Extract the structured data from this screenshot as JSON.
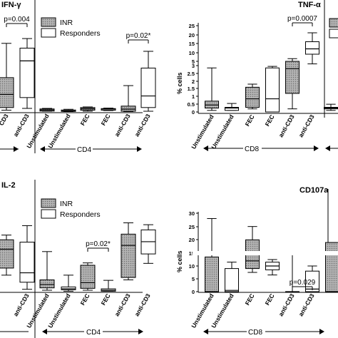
{
  "legend": {
    "inr": "INR",
    "responders": "Responders"
  },
  "chart_data": [
    {
      "type": "box",
      "panel": "ifn",
      "title": "IFN-γ",
      "ylim": [
        0,
        13
      ],
      "groups": [
        {
          "label": "CD3",
          "box": "r",
          "stats": [
            0.5,
            1.3,
            3.4,
            5.5,
            9.8
          ]
        },
        {
          "label": "anti-CD3",
          "box": "w",
          "stats": [
            1.0,
            3.0,
            7.6,
            9.2,
            10.4
          ]
        },
        {
          "label": "Unstimulated",
          "box": "g",
          "stats": [
            0.2,
            0.25,
            0.55,
            0.85,
            1.0
          ]
        },
        {
          "label": "Unstimulated",
          "box": "w",
          "stats": [
            0.1,
            0.15,
            0.3,
            0.55,
            0.75
          ]
        },
        {
          "label": "FEC",
          "box": "g",
          "stats": [
            0.2,
            0.5,
            0.9,
            1.3,
            1.5
          ]
        },
        {
          "label": "FEC",
          "box": "w",
          "stats": [
            0.4,
            0.5,
            0.8,
            0.95,
            1.1
          ]
        },
        {
          "label": "anti-CD3",
          "box": "g",
          "stats": [
            0.1,
            0.2,
            0.8,
            1.8,
            4.5
          ]
        },
        {
          "label": "anti-CD3",
          "box": "w",
          "stats": [
            0.2,
            1.3,
            3.2,
            6.7,
            8.8
          ]
        }
      ],
      "annotations": [
        {
          "text": "p=0.004",
          "from": 0,
          "to": 1
        },
        {
          "text": "p=0.02*",
          "from": 6,
          "to": 7
        }
      ],
      "group_axis": "CD4"
    },
    {
      "type": "box",
      "panel": "tnf",
      "title": "TNF-α",
      "ylabel": "% cells",
      "ylim": [
        0,
        25
      ],
      "yticks": [
        "0",
        "0.5",
        "1",
        "1.5",
        "2",
        "2.5",
        "3",
        "5",
        "10",
        "15",
        "20",
        "25"
      ],
      "groups": [
        {
          "label": "Unstimulated",
          "box": "g",
          "stats": [
            0.1,
            0.25,
            0.45,
            0.7,
            2.85
          ]
        },
        {
          "label": "Unstimulated",
          "box": "w",
          "stats": [
            0.1,
            0.1,
            0.25,
            0.3,
            0.55
          ]
        },
        {
          "label": "FEC",
          "box": "g",
          "stats": [
            0.2,
            0.3,
            0.85,
            1.6,
            1.8
          ]
        },
        {
          "label": "FEC",
          "box": "w",
          "stats": [
            0.0,
            0.0,
            0.85,
            2.85,
            2.95
          ]
        },
        {
          "label": "anti-CD3",
          "box": "g",
          "stats": [
            0.2,
            1.2,
            2.8,
            5.0,
            6.5
          ]
        },
        {
          "label": "anti-CD3",
          "box": "w",
          "stats": [
            3.8,
            9.0,
            12.0,
            16.0,
            21.0
          ]
        },
        {
          "label": "",
          "box": "w",
          "stats": [
            0.1,
            0.2,
            0.25,
            0.3,
            0.5
          ]
        }
      ],
      "annotations": [
        {
          "text": "p=0.0007",
          "from": 4,
          "to": 5
        }
      ],
      "group_axis": "CD8"
    },
    {
      "type": "box",
      "panel": "il2",
      "title": "IL-2",
      "ylim": [
        0,
        18
      ],
      "groups": [
        {
          "label": "",
          "box": "g",
          "stats": [
            3.5,
            5,
            9,
            11,
            12
          ]
        },
        {
          "label": "anti-CD3",
          "box": "w",
          "stats": [
            0.5,
            2,
            4,
            10.5,
            14
          ]
        },
        {
          "label": "Unstimulated",
          "box": "g",
          "stats": [
            0.3,
            0.8,
            1.5,
            2.5,
            8.5
          ]
        },
        {
          "label": "Unstimulated",
          "box": "w",
          "stats": [
            0.1,
            0.4,
            0.6,
            1.0,
            3.5
          ]
        },
        {
          "label": "FEC",
          "box": "g",
          "stats": [
            0.3,
            0.7,
            1.9,
            5.6,
            6.1
          ]
        },
        {
          "label": "FEC",
          "box": "w",
          "stats": [
            0.1,
            0.1,
            0.3,
            0.6,
            2.4
          ]
        },
        {
          "label": "anti-CD3",
          "box": "g",
          "stats": [
            2.5,
            3.0,
            9.8,
            12.2,
            14.6
          ]
        },
        {
          "label": "anti-CD3",
          "box": "w",
          "stats": [
            6.0,
            8.0,
            10.6,
            13.1,
            14.2
          ]
        }
      ],
      "annotations": [
        {
          "text": "p=0.02*",
          "from": 4,
          "to": 5
        }
      ],
      "group_axis": "CD4"
    },
    {
      "type": "box",
      "panel": "cd107a",
      "title": "CD107a",
      "ylabel": "% cells",
      "ylim": [
        0,
        30
      ],
      "yticks": [
        "0",
        "5",
        "10",
        "15",
        "20",
        "25",
        "30"
      ],
      "groups": [
        {
          "label": "Unstimulated",
          "box": "g",
          "stats": [
            0,
            0,
            0,
            13.5,
            28
          ]
        },
        {
          "label": "Unstimulated",
          "box": "w",
          "stats": [
            0,
            0,
            0.5,
            9.0,
            11.5
          ]
        },
        {
          "label": "FEC",
          "box": "g",
          "stats": [
            7.5,
            9.0,
            12.0,
            20.0,
            25.0
          ]
        },
        {
          "label": "FEC",
          "box": "w",
          "stats": [
            6.5,
            8.5,
            10.0,
            11.5,
            12.5
          ]
        },
        {
          "label": "anti-CD3",
          "box": "g",
          "stats": [
            0,
            0,
            0,
            0,
            15.0
          ]
        },
        {
          "label": "anti-CD3",
          "box": "w",
          "stats": [
            0,
            0,
            1.0,
            8.0,
            10.0
          ]
        },
        {
          "label": "",
          "box": "g",
          "stats": [
            0,
            0,
            0,
            19.0,
            19.0
          ]
        }
      ],
      "annotations": [
        {
          "text": "p=0.029",
          "from": 4,
          "to": 5
        }
      ],
      "group_axis": "CD8"
    }
  ]
}
